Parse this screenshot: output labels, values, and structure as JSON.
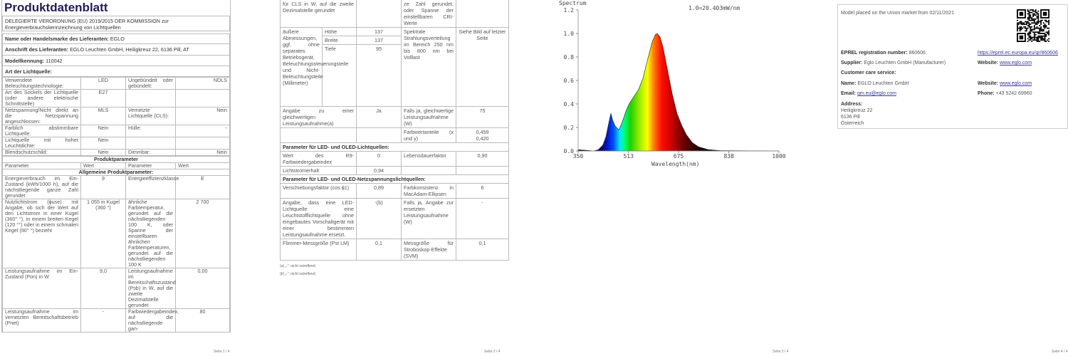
{
  "page1": {
    "title": "Produktdatenblatt",
    "regulation": "DELEGIERTE VERORDNUNG (EU) 2019/2015 DER KOMMISSION zur Energieverbrauchskennzeichnung von Lichtquellen",
    "supplier_label": "Name oder Handelsmarke des Lieferanten:",
    "supplier": "EGLO",
    "address_label": "Anschrift des Lieferanten:",
    "address": "EGLO Leuchten GmbH, Heiligkreuz 22, 6136 Pill, AT",
    "model_label": "Modellkennung:",
    "model": "110042",
    "type_heading": "Art der Lichtquelle:",
    "type_rows": [
      [
        "Verwendete Beleuchtungstechnologie:",
        "LED",
        "Ungebündelt oder gebündelt:",
        "NDLS"
      ],
      [
        "Art des Sockels der Lichtquelle (oder andere elektrische Schnittstelle)",
        "E27",
        "",
        ""
      ],
      [
        "Netzspannung/Nicht direkt an die Netzspannung angeschlossen:",
        "MLS",
        "Vernetzte Lichtquelle (CLS):",
        "Nein"
      ],
      [
        "Farblich abstimmbare Lichtquelle:",
        "Nein",
        "Hülle:",
        "-"
      ],
      [
        "Lichtquelle mit hoher Leuchtdichte:",
        "Nein",
        "",
        ""
      ],
      [
        "Blendschutzschild:",
        "Nein",
        "Dimmbar:",
        "Nein"
      ]
    ],
    "params_heading": "Produktparameter",
    "col_headers": [
      "Parameter",
      "Wert",
      "Parameter",
      "Wert"
    ],
    "general_heading": "Allgemeine Produktparameter:",
    "param_rows": [
      [
        "Energieverbrauch im Ein-Zustand (kWh/1000 h), auf die nächstliegende ganze Zahl gerundet",
        "9",
        "Energieeffizienzklasse",
        "E"
      ],
      [
        "Nutzlichtstrom (ϕuse) mit Angabe, ob sich der Wert auf den Lichtstrom in einer Kugel (360° °), in einem breiten Kegel (120 °°) oder in einem schmalen Kegel (90° °) bezieht",
        "1 055 in Kugel (360 °)",
        "ähnliche Farbtemperatur, gerundet auf die nächstliegenden 100 K, oder Spanne der einstellbaren ähnlichen Farbtemperaturen, gerundet auf die nächstliegenden 100 K",
        "2 700"
      ],
      [
        "Leistungsaufnahme im Ein-Zustand (Pon) in W",
        "9,0",
        "Leistungsaufnahme im Bereitschaftszustand (Psb) in W, auf die zweite Dezimalstelle gerundet",
        "0,00"
      ],
      [
        "Leistungsaufnahme im vernetzten Bereitschaftsbetrieb (Pnet)",
        "-",
        "Farbwiedergabeindex, auf die nächstliegende gan-",
        "80"
      ]
    ],
    "footer": "Seite 1 / 4"
  },
  "page2": {
    "top_row": [
      "für CLS in W, auf die zweite Dezimalstelle gerundet",
      "",
      "ze Zahl gerundet, oder Spanne der einstellbaren CRI-Werte",
      ""
    ],
    "dimensions_label": "äußere Abmessungen, ggf. ohne separates Betriebsgerät, Beleuchtungssteuerungsteile und Nicht-Beleuchtungsteile (Millimeter)",
    "dimensions": [
      {
        "name": "Höhe",
        "value": "137"
      },
      {
        "name": "Breite",
        "value": "137"
      },
      {
        "name": "Tiefe",
        "value": "95"
      }
    ],
    "spectral_label": "Spektrale Strahlungsverteilung im Bereich 250 nm bis 800 nm bei Volllast",
    "spectral_value": "Siehe Bild auf letzter Seite",
    "equiv_row": [
      "Angabe zu einer gleichwertigen Leistungsaufnahme(a)",
      "Ja",
      "Falls ja, gleichwertige Leistungsaufnahme (W)",
      "75"
    ],
    "chroma_row": [
      "",
      "",
      "Farbwertanteile (x und y)",
      "0,459\n0,420"
    ],
    "led_heading": "Parameter für LED- und OLED-Lichtquellen:",
    "led_rows": [
      [
        "Wert des R9-Farbwiedergabeindex",
        "0",
        "Lebensdauerfaktor",
        "0,90"
      ],
      [
        "Lichtstromerhalt",
        "0,94",
        "",
        ""
      ]
    ],
    "mains_heading": "Parameter für LED- und OLED-Netzspannungslichtquellen:",
    "mains_rows": [
      [
        "Verschiebungsfaktor (cos ϕ1)",
        "0,89",
        "Farbkonsistenz in MacAdam-Ellipsen",
        "6"
      ],
      [
        "Angabe, dass eine LED-Lichtquelle eine Leuchtstofflichtquelle ohne eingebautes Vorschaltgerät mit einer bestimmten Leistungsaufnahme ersetzt.",
        "-(b)",
        "Falls ja, Angabe zur ersetzten Leistungsaufnahme (W)",
        "-"
      ],
      [
        "Flimmer-Messgröße (Pst LM)",
        "0,1",
        "Messgröße für Stroboskop-Effekte (SVM)",
        "0,1"
      ]
    ],
    "notes": [
      "(a) „-“: nicht zutreffend;",
      "(b) „-“: nicht zutreffend;"
    ],
    "footer": "Seite 2 / 4"
  },
  "page3": {
    "chart_data": {
      "type": "area",
      "title": "Spectrum",
      "annotation": "1.0=20.403mW/nm",
      "xlabel": "Wavelength(nm)",
      "ylabel": "",
      "xlim": [
        350,
        1000
      ],
      "ylim": [
        0,
        1.2
      ],
      "xticks": [
        "350",
        "513",
        "675",
        "838",
        "1000"
      ],
      "yticks": [
        "0.0",
        "0.2",
        "0.4",
        "0.6",
        "0.8",
        "1.0",
        "1.2"
      ],
      "grid": false,
      "x": [
        350,
        380,
        400,
        415,
        430,
        440,
        450,
        456,
        462,
        470,
        482,
        492,
        505,
        515,
        530,
        545,
        560,
        575,
        590,
        600,
        606,
        615,
        625,
        640,
        655,
        670,
        685,
        700,
        720,
        740,
        770,
        810,
        1000
      ],
      "y": [
        0.01,
        0.005,
        0.0,
        0.01,
        0.05,
        0.12,
        0.25,
        0.32,
        0.26,
        0.21,
        0.18,
        0.24,
        0.34,
        0.4,
        0.46,
        0.52,
        0.62,
        0.78,
        0.93,
        0.99,
        1.0,
        0.97,
        0.88,
        0.68,
        0.48,
        0.32,
        0.22,
        0.14,
        0.07,
        0.035,
        0.012,
        0.003,
        0.0
      ]
    },
    "footer": "Seite 3 / 4"
  },
  "page4": {
    "market": "Model placed on the Union market from 02/11/2021",
    "eprel_label": "EPREL registration number:",
    "eprel": "860606",
    "eprel_link": "https://eprel.ec.europa.eu/qr/860606",
    "supplier_label": "Supplier:",
    "supplier": "Eglo Leuchten GmbH (Manufacturer)",
    "website_label": "Website:",
    "website": "www.eglo.com",
    "care_heading": "Customer care service:",
    "name_label": "Name:",
    "name": "EGLO Leuchten GmbH",
    "website2_label": "Website:",
    "website2": "www.eglo.com",
    "email_label": "Email:",
    "email": "qm.eu@eglo.com",
    "phone_label": "Phone:",
    "phone": "+43 5242 69960",
    "address_label": "Address:",
    "address_lines": [
      "Heiligkreuz 22",
      "6136 Pill",
      "Österreich"
    ],
    "footer": "Seite 4 / 4"
  }
}
